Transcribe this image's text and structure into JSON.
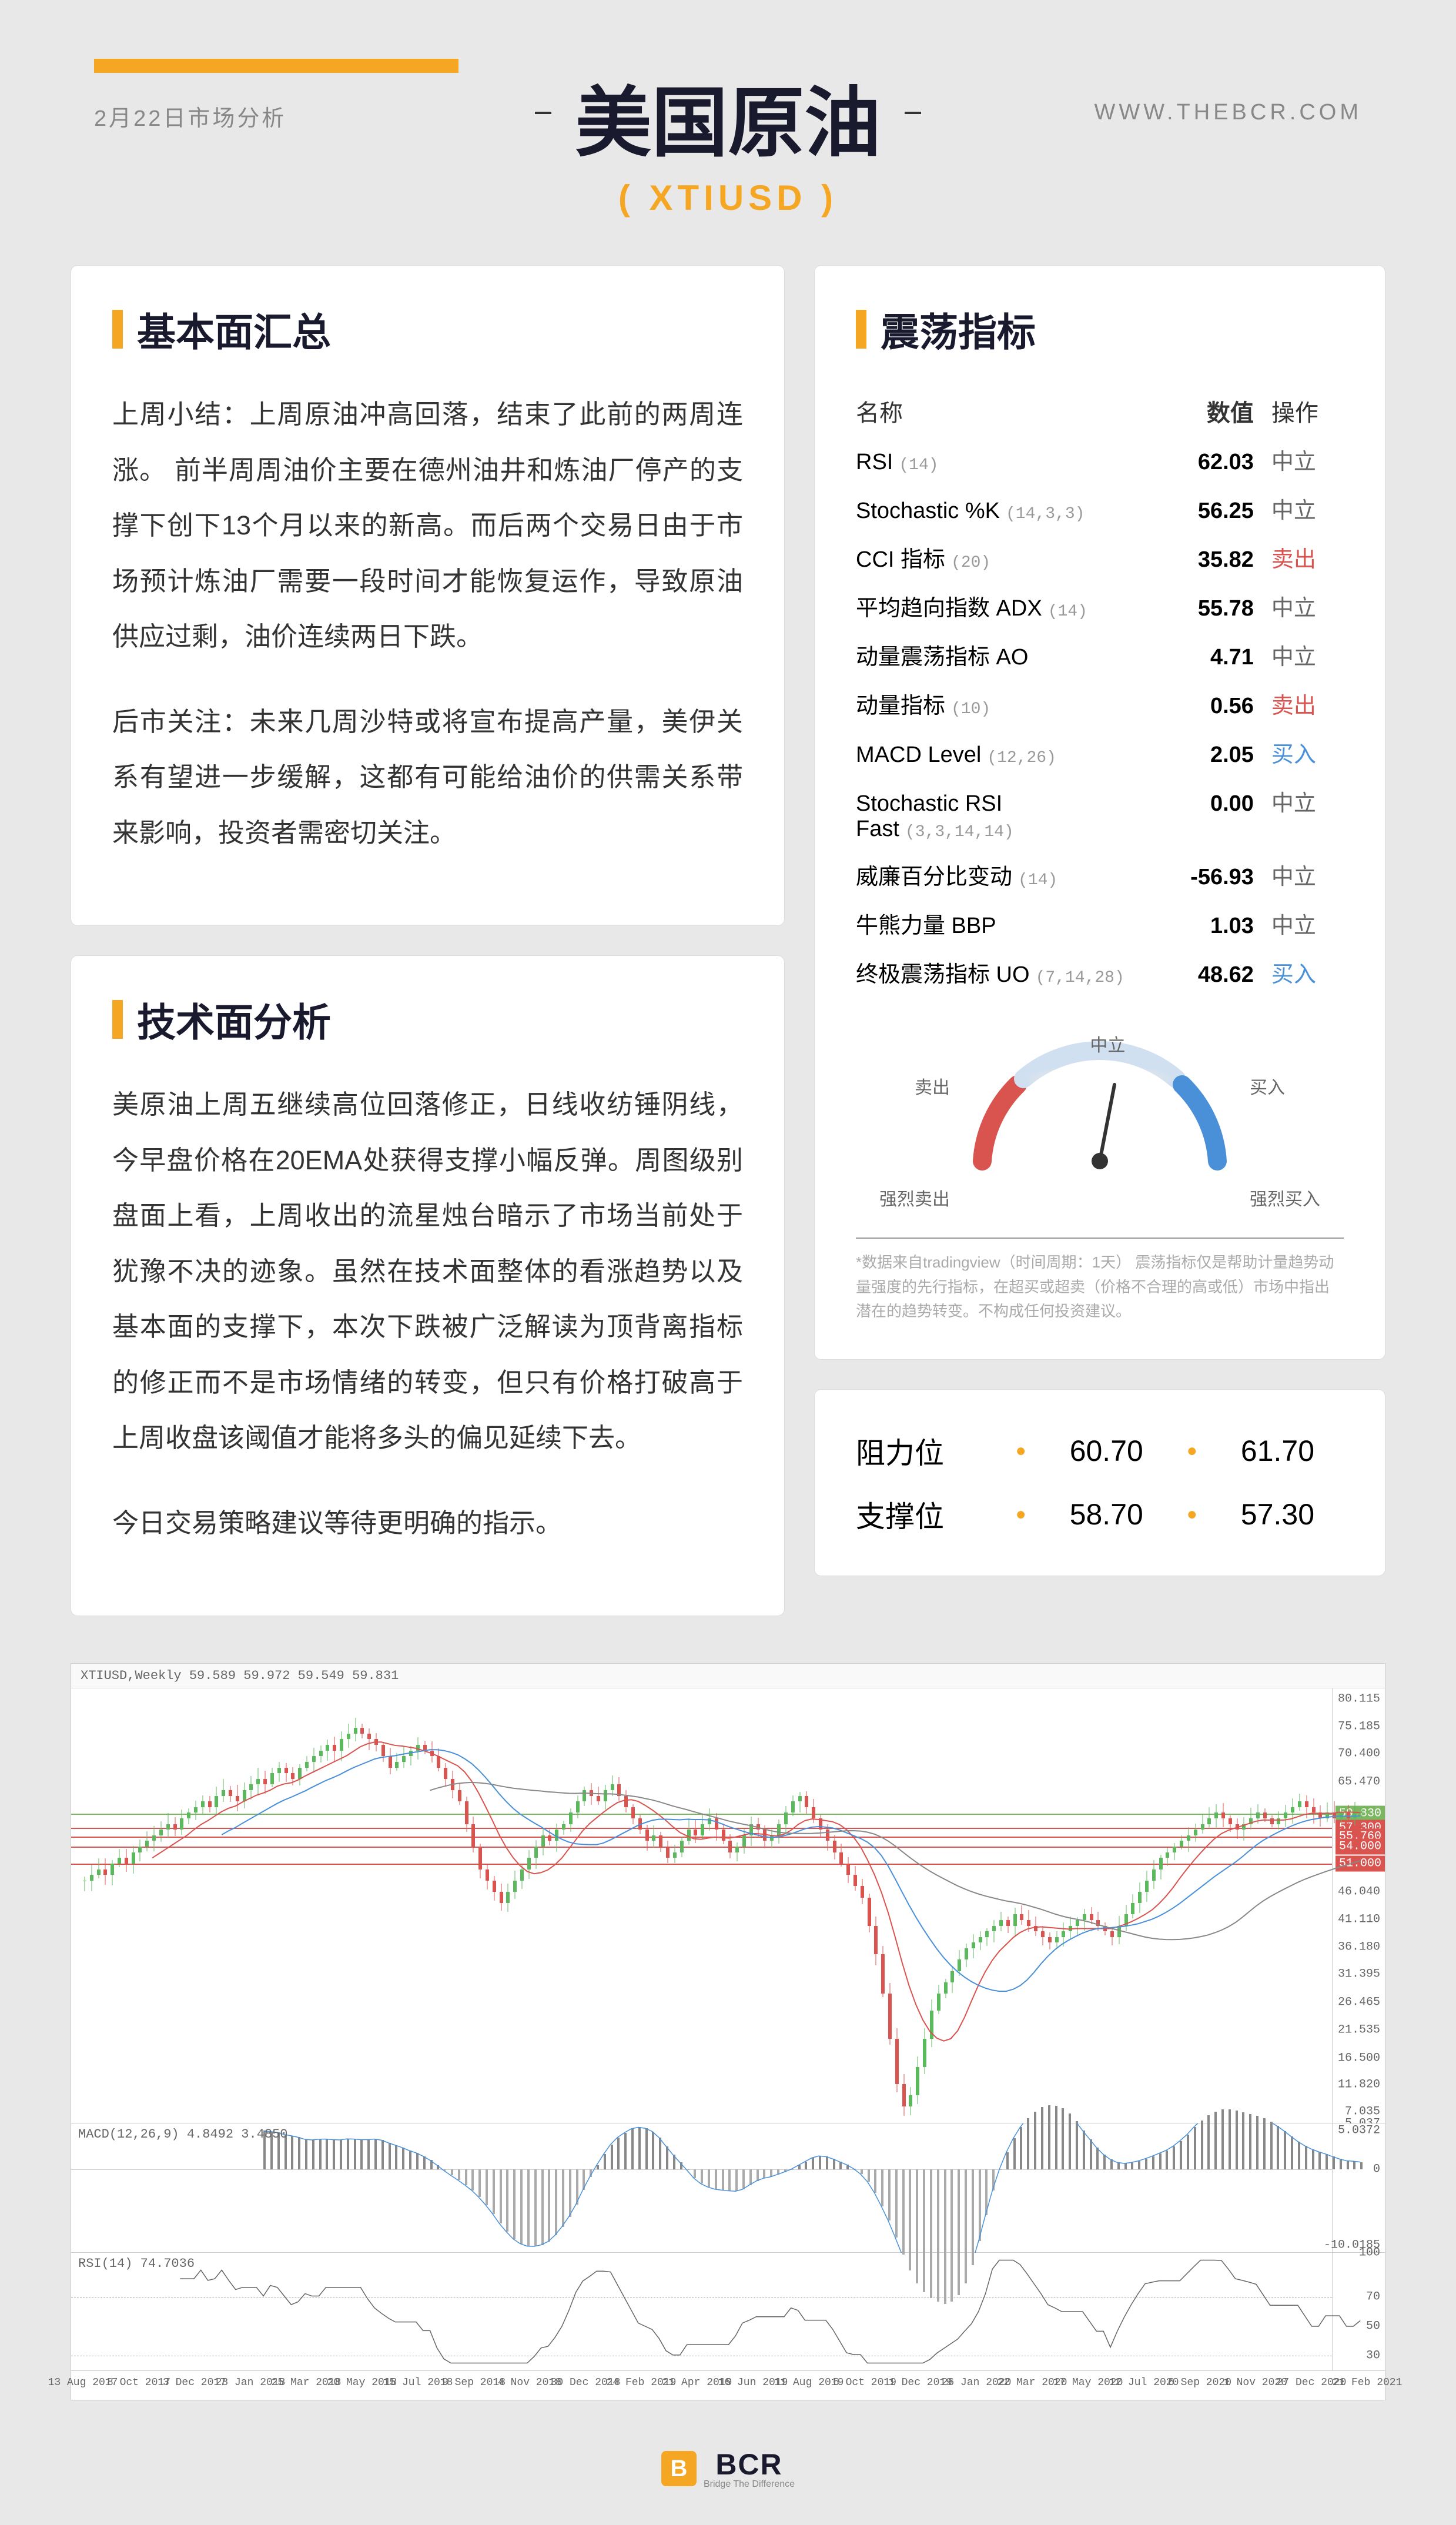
{
  "header": {
    "date": "2月22日市场分析",
    "title": "美国原油",
    "subtitle": "( XTIUSD )",
    "url": "WWW.THEBCR.COM"
  },
  "fundamental": {
    "title": "基本面汇总",
    "p1": "上周小结：上周原油冲高回落，结束了此前的两周连涨。 前半周周油价主要在德州油井和炼油厂停产的支撑下创下13个月以来的新高。而后两个交易日由于市场预计炼油厂需要一段时间才能恢复运作，导致原油供应过剩，油价连续两日下跌。",
    "p2": "后市关注：未来几周沙特或将宣布提高产量，美伊关系有望进一步缓解，这都有可能给油价的供需关系带来影响，投资者需密切关注。"
  },
  "technical": {
    "title": "技术面分析",
    "p1": "美原油上周五继续高位回落修正，日线收纺锤阴线，今早盘价格在20EMA处获得支撑小幅反弹。周图级别盘面上看，上周收出的流星烛台暗示了市场当前处于犹豫不决的迹象。虽然在技术面整体的看涨趋势以及基本面的支撑下，本次下跌被广泛解读为顶背离指标的修正而不是市场情绪的转变，但只有价格打破高于上周收盘该阈值才能将多头的偏见延续下去。",
    "p2": "今日交易策略建议等待更明确的指示。"
  },
  "oscillator": {
    "title": "震荡指标",
    "headers": {
      "name": "名称",
      "value": "数值",
      "action": "操作"
    },
    "rows": [
      {
        "name": "RSI",
        "param": "(14)",
        "value": "62.03",
        "action": "中立",
        "cls": "act-n"
      },
      {
        "name": "Stochastic %K",
        "param": "(14,3,3)",
        "value": "56.25",
        "action": "中立",
        "cls": "act-n"
      },
      {
        "name": "CCI 指标",
        "param": "(20)",
        "value": "35.82",
        "action": "卖出",
        "cls": "act-s"
      },
      {
        "name": "平均趋向指数 ADX",
        "param": "(14)",
        "value": "55.78",
        "action": "中立",
        "cls": "act-n"
      },
      {
        "name": "动量震荡指标 AO",
        "param": "",
        "value": "4.71",
        "action": "中立",
        "cls": "act-n"
      },
      {
        "name": "动量指标",
        "param": "(10)",
        "value": "0.56",
        "action": "卖出",
        "cls": "act-s"
      },
      {
        "name": "MACD Level",
        "param": "(12,26)",
        "value": "2.05",
        "action": "买入",
        "cls": "act-b"
      },
      {
        "name": "Stochastic RSI Fast",
        "param": "(3,3,14,14)",
        "value": "0.00",
        "action": "中立",
        "cls": "act-n"
      },
      {
        "name": "威廉百分比变动",
        "param": "(14)",
        "value": "-56.93",
        "action": "中立",
        "cls": "act-n"
      },
      {
        "name": "牛熊力量 BBP",
        "param": "",
        "value": "1.03",
        "action": "中立",
        "cls": "act-n"
      },
      {
        "name": "终极震荡指标 UO",
        "param": "(7,14,28)",
        "value": "48.62",
        "action": "买入",
        "cls": "act-b"
      }
    ],
    "gauge": {
      "labels": {
        "strong_sell": "强烈卖出",
        "sell": "卖出",
        "neutral": "中立",
        "buy": "买入",
        "strong_buy": "强烈买入"
      },
      "needle_angle": 10,
      "colors": {
        "sell": "#d9534f",
        "neutral": "#c0c0c0",
        "buy": "#4a90d9"
      }
    },
    "disclaimer": "*数据来自tradingview（时间周期：1天）\n震荡指标仅是帮助计量趋势动量强度的先行指标，在超买或超卖（价格不合理的高或低）市场中指出潜在的趋势转变。不构成任何投资建议。"
  },
  "levels": {
    "resistance": {
      "label": "阻力位",
      "v1": "60.70",
      "v2": "61.70"
    },
    "support": {
      "label": "支撑位",
      "v1": "58.70",
      "v2": "57.30"
    }
  },
  "chart": {
    "header": "XTIUSD,Weekly  59.589 59.972 59.549 59.831",
    "main": {
      "y_ticks": [
        80.115,
        75.185,
        70.4,
        65.47,
        59.83,
        57.3,
        55.76,
        54.0,
        51.0,
        46.04,
        41.11,
        36.18,
        31.395,
        26.465,
        21.535,
        16.5,
        11.82,
        7.035,
        5.0372
      ],
      "y_min": 5,
      "y_max": 82,
      "hlines": [
        {
          "y": 59.83,
          "color": "#7bb661",
          "w": 2
        },
        {
          "y": 57.3,
          "color": "#d9534f",
          "w": 2
        },
        {
          "y": 55.76,
          "color": "#d9534f",
          "w": 2
        },
        {
          "y": 54.0,
          "color": "#d9534f",
          "w": 2
        },
        {
          "y": 51.0,
          "color": "#d9534f",
          "w": 2
        }
      ],
      "price_box": [
        {
          "y": 59.83,
          "color": "#7bb661",
          "text": "59.830"
        },
        {
          "y": 57.3,
          "color": "#d9534f",
          "text": "57.300"
        },
        {
          "y": 55.76,
          "color": "#d9534f",
          "text": "55.760"
        },
        {
          "y": 54.0,
          "color": "#d9534f",
          "text": "54.000"
        },
        {
          "y": 51.0,
          "color": "#d9534f",
          "text": "51.000"
        }
      ]
    },
    "macd": {
      "label": "MACD(12,26,9) 4.8492 3.4850",
      "y_ticks": [
        "5.0372",
        "0",
        "-10.0185"
      ],
      "y_min": -11,
      "y_max": 6
    },
    "rsi": {
      "label": "RSI(14) 74.7036",
      "y_ticks": [
        "100",
        "70",
        "50",
        "30"
      ],
      "y_min": 20,
      "y_max": 100
    },
    "x_ticks": [
      "13 Aug 2017",
      "8 Oct 2017",
      "3 Dec 2017",
      "28 Jan 2018",
      "25 Mar 2018",
      "20 May 2018",
      "15 Jul 2018",
      "9 Sep 2018",
      "4 Nov 2018",
      "30 Dec 2018",
      "24 Feb 2019",
      "21 Apr 2019",
      "16 Jun 2019",
      "11 Aug 2019",
      "6 Oct 2019",
      "1 Dec 2019",
      "26 Jan 2020",
      "22 Mar 2020",
      "17 May 2020",
      "12 Jul 2020",
      "6 Sep 2020",
      "1 Nov 2020",
      "27 Dec 2020",
      "21 Feb 2021"
    ]
  },
  "footer": {
    "brand": "BCR",
    "tagline": "Bridge The Difference"
  }
}
